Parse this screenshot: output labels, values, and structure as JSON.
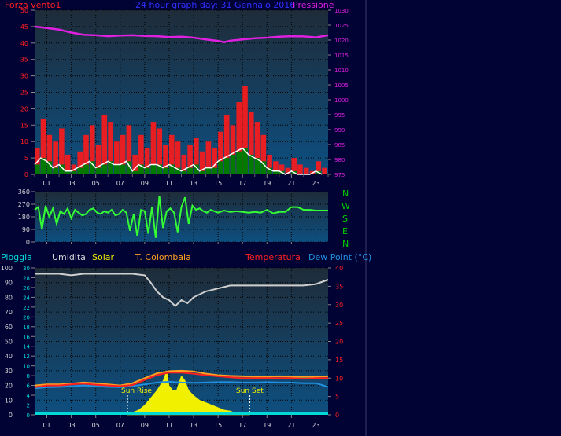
{
  "colors": {
    "background": "#020335",
    "plot_bg_top": "#1f2c39",
    "plot_bg_bottom": "#0d4f80",
    "wind": "#ff1a1a",
    "wind_avg": "#ffffff",
    "wind_dark": "#007a00",
    "pressure": "#e020e0",
    "direction": "#33ff33",
    "direction_labels": "#00d000",
    "humidity": "#cfcfcf",
    "solar": "#f0f000",
    "temp_colombaia": "#ffa020",
    "temperature": "#ff2020",
    "dewpoint": "#2090e0",
    "rain": "#00d8d8",
    "grid": "#000000"
  },
  "top_panel": {
    "title": "24 hour graph day:  31 Gennaio 2016",
    "left_label": "Forza vento1",
    "right_label": "Pressione"
  },
  "mid_panel": {
    "compass": [
      "N",
      "W",
      "S",
      "E",
      "N"
    ]
  },
  "bottom_panel": {
    "legend": {
      "rain": "Pioggia",
      "humidity": "Umidita",
      "solar": "Solar",
      "temp_colombaia": "T. Colombaia",
      "temperature": "Temperatura",
      "dewpoint": "Dew Point (°C)"
    },
    "sun_rise": "Sun Rise",
    "sun_set": "Sun Set"
  },
  "chart_data": [
    {
      "type": "line",
      "name": "wind-pressure",
      "x_ticks": [
        "01",
        "03",
        "05",
        "07",
        "09",
        "11",
        "13",
        "15",
        "17",
        "19",
        "21",
        "23"
      ],
      "xlim": [
        0,
        24
      ],
      "y_left": {
        "ticks": [
          0,
          5,
          10,
          15,
          20,
          25,
          30,
          35,
          40,
          45,
          50
        ],
        "ylim": [
          0,
          50
        ]
      },
      "y_right": {
        "ticks": [
          975,
          980,
          985,
          990,
          995,
          1000,
          1005,
          1010,
          1015,
          1020,
          1025,
          1030
        ],
        "ylim": [
          975,
          1030
        ]
      },
      "series": [
        {
          "key": "wind_gust",
          "axis": "left",
          "x": [
            0,
            0.5,
            1,
            1.5,
            2,
            2.5,
            3,
            3.5,
            4,
            4.5,
            5,
            5.5,
            6,
            6.5,
            7,
            7.5,
            8,
            8.5,
            9,
            9.5,
            10,
            10.5,
            11,
            11.5,
            12,
            12.5,
            13,
            13.5,
            14,
            14.5,
            15,
            15.5,
            16,
            16.5,
            17,
            17.5,
            18,
            18.5,
            19,
            19.5,
            20,
            20.5,
            21,
            21.5,
            22,
            22.5,
            23,
            23.5
          ],
          "values": [
            8,
            17,
            12,
            10,
            14,
            6,
            3,
            7,
            12,
            15,
            9,
            18,
            16,
            10,
            12,
            15,
            6,
            12,
            8,
            16,
            14,
            9,
            12,
            10,
            6,
            9,
            11,
            7,
            10,
            8,
            13,
            18,
            15,
            22,
            27,
            19,
            16,
            12,
            6,
            4,
            3,
            2,
            5,
            3,
            2,
            1,
            4,
            2
          ]
        },
        {
          "key": "wind_avg",
          "axis": "left",
          "x": [
            0,
            0.5,
            1,
            1.5,
            2,
            2.5,
            3,
            3.5,
            4,
            4.5,
            5,
            5.5,
            6,
            6.5,
            7,
            7.5,
            8,
            8.5,
            9,
            9.5,
            10,
            10.5,
            11,
            11.5,
            12,
            12.5,
            13,
            13.5,
            14,
            14.5,
            15,
            15.5,
            16,
            16.5,
            17,
            17.5,
            18,
            18.5,
            19,
            19.5,
            20,
            20.5,
            21,
            21.5,
            22,
            22.5,
            23,
            23.5
          ],
          "values": [
            3,
            5,
            4,
            2,
            3,
            1,
            1,
            2,
            3,
            4,
            2,
            3,
            4,
            3,
            3,
            4,
            1,
            3,
            2,
            3,
            3,
            2,
            3,
            2,
            1,
            2,
            3,
            1,
            2,
            2,
            4,
            5,
            6,
            7,
            8,
            6,
            5,
            4,
            2,
            1,
            1,
            0,
            1,
            0,
            0,
            0,
            1,
            0
          ]
        },
        {
          "key": "pressure",
          "axis": "right",
          "x": [
            0,
            1,
            2,
            3,
            4,
            5,
            6,
            7,
            8,
            9,
            10,
            11,
            12,
            13,
            14,
            15,
            15.5,
            16,
            17,
            18,
            19,
            20,
            21,
            22,
            23,
            24
          ],
          "values": [
            1024.5,
            1024,
            1023.5,
            1022.5,
            1021.8,
            1021.6,
            1021.3,
            1021.5,
            1021.6,
            1021.4,
            1021.3,
            1021.0,
            1021.1,
            1020.8,
            1020.2,
            1019.7,
            1019.3,
            1019.8,
            1020.2,
            1020.6,
            1020.8,
            1021.1,
            1021.3,
            1021.2,
            1020.9,
            1021.6
          ]
        }
      ]
    },
    {
      "type": "line",
      "name": "wind-direction",
      "x_ticks": [
        "01",
        "03",
        "05",
        "07",
        "09",
        "11",
        "13",
        "15",
        "17",
        "19",
        "21",
        "23"
      ],
      "xlim": [
        0,
        24
      ],
      "y_left": {
        "ticks": [
          0,
          90,
          180,
          270,
          360
        ],
        "ylim": [
          0,
          360
        ]
      },
      "series": [
        {
          "key": "direction",
          "x": [
            0,
            0.3,
            0.6,
            0.9,
            1.2,
            1.5,
            1.8,
            2.1,
            2.4,
            2.7,
            3,
            3.3,
            3.6,
            3.9,
            4.2,
            4.5,
            4.8,
            5.1,
            5.4,
            5.7,
            6,
            6.3,
            6.6,
            6.9,
            7.2,
            7.5,
            7.8,
            8.1,
            8.4,
            8.7,
            9,
            9.3,
            9.6,
            9.9,
            10.2,
            10.5,
            10.8,
            11.1,
            11.4,
            11.7,
            12,
            12.3,
            12.6,
            12.9,
            13.2,
            13.5,
            13.8,
            14.1,
            14.4,
            14.7,
            15,
            15.5,
            16,
            16.5,
            17,
            17.5,
            18,
            18.5,
            19,
            19.5,
            20,
            20.5,
            21,
            21.5,
            22,
            22.5,
            23,
            23.5,
            24
          ],
          "values": [
            230,
            250,
            90,
            260,
            180,
            240,
            130,
            220,
            200,
            240,
            170,
            230,
            210,
            190,
            200,
            230,
            240,
            210,
            200,
            220,
            210,
            230,
            190,
            200,
            230,
            210,
            80,
            200,
            40,
            230,
            220,
            60,
            250,
            30,
            330,
            100,
            220,
            240,
            210,
            70,
            250,
            320,
            130,
            260,
            230,
            240,
            220,
            210,
            230,
            220,
            210,
            225,
            215,
            220,
            215,
            210,
            215,
            210,
            230,
            205,
            215,
            215,
            250,
            250,
            230,
            230,
            225,
            225,
            225
          ]
        }
      ]
    },
    {
      "type": "line",
      "name": "rain-temperature",
      "x_ticks": [
        "01",
        "03",
        "05",
        "07",
        "09",
        "11",
        "13",
        "15",
        "17",
        "19",
        "21",
        "23"
      ],
      "xlim": [
        0,
        24
      ],
      "y_rain": {
        "ticks": [
          0,
          10,
          20,
          30,
          40,
          50,
          60,
          70,
          80,
          90,
          100
        ],
        "ylim": [
          0,
          100
        ]
      },
      "y_solar": {
        "ticks": [
          0,
          2,
          4,
          6,
          8,
          10,
          12,
          14,
          16,
          18,
          20,
          22,
          24,
          26,
          28,
          30
        ],
        "ylim": [
          0,
          30
        ]
      },
      "y_temp": {
        "ticks": [
          0,
          5,
          10,
          15,
          20,
          25,
          30,
          35,
          40
        ],
        "ylim": [
          0,
          40
        ]
      },
      "series": [
        {
          "key": "humidity",
          "axis": "rain",
          "x": [
            0,
            1,
            2,
            3,
            4,
            5,
            6,
            7,
            8,
            9,
            9.5,
            10,
            10.5,
            11,
            11.5,
            12,
            12.5,
            13,
            14,
            15,
            16,
            17,
            18,
            19,
            20,
            21,
            22,
            23,
            24
          ],
          "values": [
            96,
            96,
            96,
            95,
            96,
            96,
            96,
            96,
            96,
            95,
            90,
            84,
            80,
            78,
            74,
            78,
            76,
            80,
            84,
            86,
            88,
            88,
            88,
            88,
            88,
            88,
            88,
            89,
            92
          ]
        },
        {
          "key": "temperature",
          "axis": "temp",
          "x": [
            0,
            1,
            2,
            3,
            4,
            5,
            6,
            7,
            8,
            9,
            10,
            11,
            12,
            13,
            14,
            15,
            16,
            17,
            18,
            19,
            20,
            21,
            22,
            23,
            24
          ],
          "values": [
            7.5,
            8,
            8,
            8.3,
            8.5,
            8.2,
            8,
            7.8,
            8.1,
            9.5,
            10.8,
            11.5,
            11.5,
            11.2,
            10.8,
            10.5,
            10.2,
            10.0,
            10.0,
            10.0,
            10.0,
            10.0,
            9.8,
            10.0,
            10.0
          ]
        },
        {
          "key": "temp_colombaia",
          "axis": "temp",
          "x": [
            0,
            1,
            2,
            3,
            4,
            5,
            6,
            7,
            8,
            9,
            10,
            11,
            12,
            13,
            14,
            15,
            16,
            17,
            18,
            19,
            20,
            21,
            22,
            23,
            24
          ],
          "values": [
            8,
            8.3,
            8.3,
            8.5,
            8.8,
            8.6,
            8.3,
            8,
            8.6,
            10,
            11.3,
            11.9,
            12,
            11.8,
            11.2,
            10.8,
            10.6,
            10.5,
            10.4,
            10.4,
            10.5,
            10.4,
            10.3,
            10.4,
            10.5
          ]
        },
        {
          "key": "dewpoint",
          "axis": "temp",
          "x": [
            0,
            1,
            2,
            3,
            4,
            5,
            6,
            7,
            8,
            9,
            10,
            11,
            12,
            13,
            14,
            15,
            16,
            17,
            18,
            19,
            20,
            21,
            22,
            23,
            24
          ],
          "values": [
            7.2,
            7.5,
            7.6,
            7.8,
            8.0,
            7.8,
            7.6,
            7.5,
            7.8,
            8.3,
            8.8,
            9.0,
            8.8,
            8.7,
            8.8,
            8.9,
            8.9,
            8.8,
            8.8,
            8.9,
            8.8,
            8.8,
            8.6,
            8.6,
            7.6
          ]
        },
        {
          "key": "solar",
          "axis": "solar",
          "x": [
            7.6,
            8,
            8.5,
            9,
            9.5,
            10,
            10.5,
            10.8,
            11,
            11.3,
            11.6,
            12,
            12.3,
            12.6,
            13,
            13.5,
            14,
            14.5,
            15,
            15.5,
            16,
            16.5,
            17.6
          ],
          "values": [
            0,
            0.5,
            1,
            2,
            3.5,
            5,
            7,
            9,
            6,
            5,
            5,
            8,
            7,
            5,
            4,
            3,
            2.5,
            2,
            1.5,
            1,
            0.8,
            0.3,
            0
          ]
        },
        {
          "key": "rain",
          "axis": "rain",
          "x": [
            0,
            24
          ],
          "values": [
            0,
            0
          ]
        }
      ],
      "markers": [
        {
          "key": "sun_rise",
          "x": 7.6
        },
        {
          "key": "sun_set",
          "x": 17.6
        }
      ]
    }
  ]
}
